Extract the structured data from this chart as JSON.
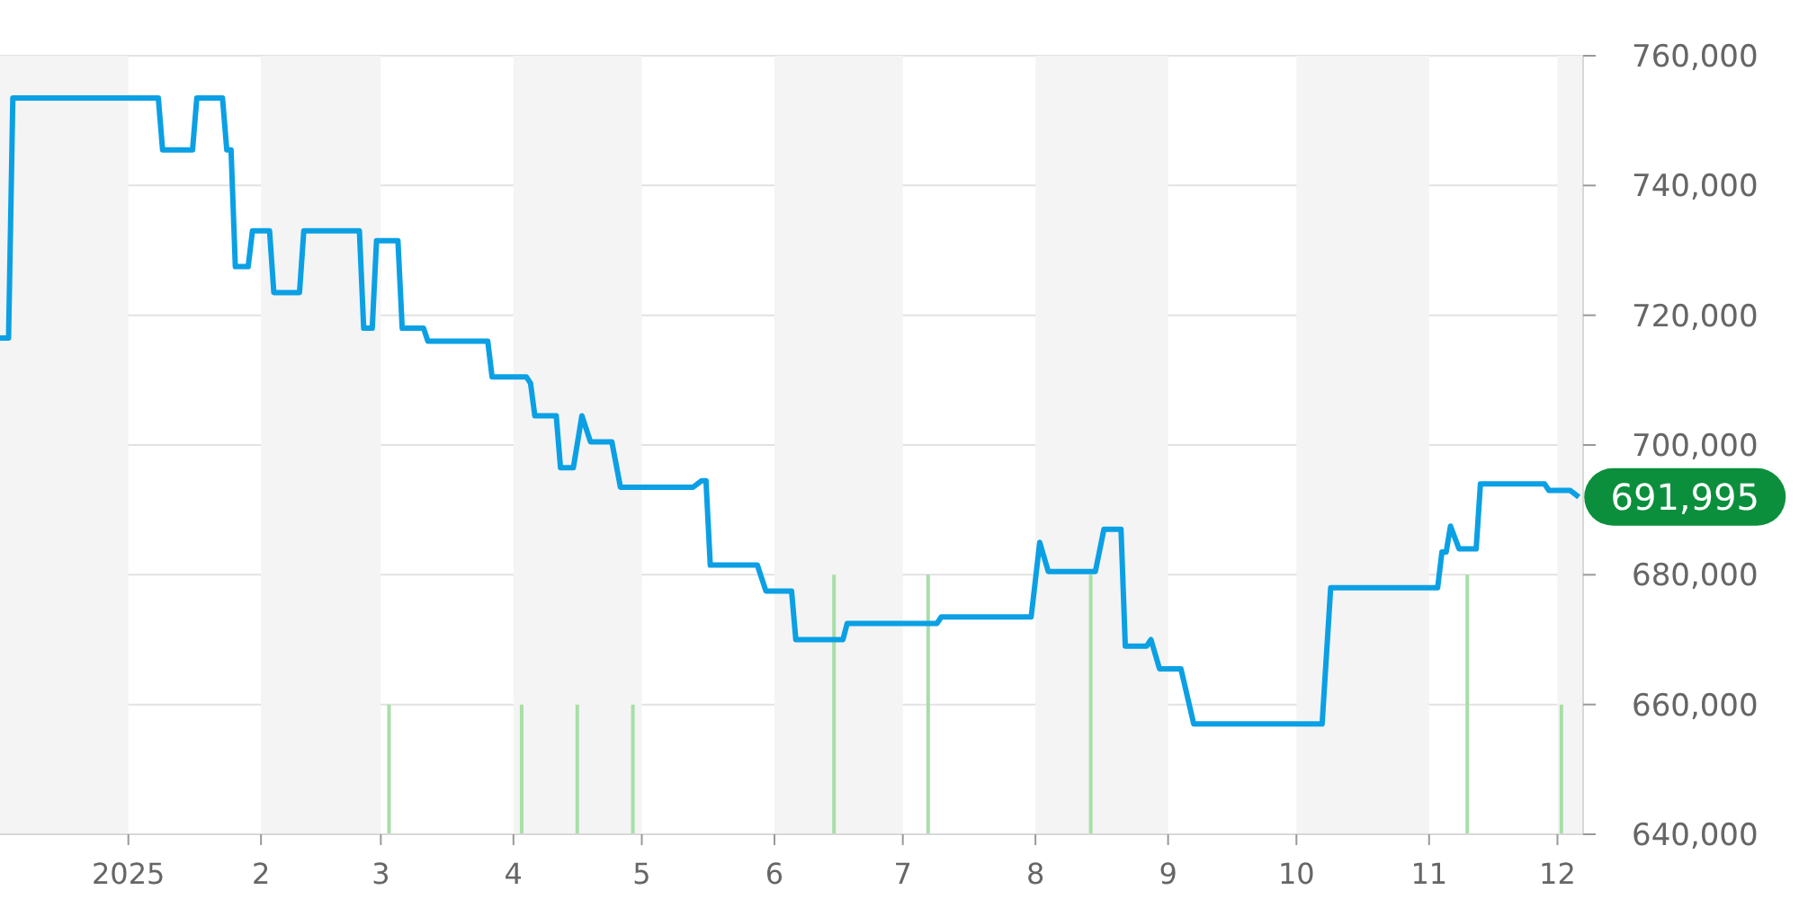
{
  "chart_data": {
    "type": "line",
    "series": [
      {
        "color": "#0ba0e4",
        "x": [
          "2024-12-02",
          "2024-12-04",
          "2024-12-05",
          "2025-01-08",
          "2025-01-09",
          "2025-01-16",
          "2025-01-17",
          "2025-01-23",
          "2025-01-24",
          "2025-01-25",
          "2025-01-26",
          "2025-01-29",
          "2025-01-30",
          "2025-02-03",
          "2025-02-04",
          "2025-02-10",
          "2025-02-11",
          "2025-02-24",
          "2025-02-25",
          "2025-02-27",
          "2025-02-28",
          "2025-03-05",
          "2025-03-06",
          "2025-03-11",
          "2025-03-12",
          "2025-03-26",
          "2025-03-27",
          "2025-04-04",
          "2025-04-05",
          "2025-04-06",
          "2025-04-11",
          "2025-04-12",
          "2025-04-15",
          "2025-04-17",
          "2025-04-19",
          "2025-04-24",
          "2025-04-26",
          "2025-05-13",
          "2025-05-15",
          "2025-05-16",
          "2025-05-17",
          "2025-05-28",
          "2025-05-30",
          "2025-06-05",
          "2025-06-06",
          "2025-06-17",
          "2025-06-18",
          "2025-07-09",
          "2025-07-10",
          "2025-07-31",
          "2025-08-02",
          "2025-08-04",
          "2025-08-15",
          "2025-08-17",
          "2025-08-21",
          "2025-08-22",
          "2025-08-27",
          "2025-08-28",
          "2025-08-30",
          "2025-09-04",
          "2025-09-07",
          "2025-10-07",
          "2025-10-09",
          "2025-11-03",
          "2025-11-04",
          "2025-11-05",
          "2025-11-06",
          "2025-11-08",
          "2025-11-12",
          "2025-11-13",
          "2025-11-28",
          "2025-11-29",
          "2025-12-04",
          "2025-12-06"
        ],
        "values": [
          716500,
          716500,
          753500,
          753500,
          745500,
          745500,
          753500,
          753500,
          745500,
          745500,
          727500,
          727500,
          733000,
          733000,
          723500,
          723500,
          733000,
          733000,
          718000,
          718000,
          731500,
          731500,
          718000,
          718000,
          716000,
          716000,
          710500,
          710500,
          709500,
          704500,
          704500,
          696500,
          696500,
          704500,
          700500,
          700500,
          693500,
          693500,
          694500,
          694500,
          681500,
          681500,
          677500,
          677500,
          670000,
          670000,
          672500,
          672500,
          673500,
          673500,
          685000,
          680500,
          680500,
          687000,
          687000,
          669000,
          669000,
          670000,
          665500,
          665500,
          657000,
          657000,
          678000,
          678000,
          683500,
          683500,
          687500,
          684000,
          684000,
          694000,
          694000,
          693000,
          693000,
          691995
        ],
        "value_labels": [
          null,
          null,
          null,
          null,
          null,
          null,
          null,
          null,
          null,
          null,
          null,
          null,
          null,
          null,
          null,
          null,
          null,
          null,
          null,
          null,
          null,
          null,
          null,
          null,
          null,
          null,
          null,
          null,
          null,
          null,
          null,
          null,
          null,
          null,
          null,
          null,
          null,
          null,
          null,
          null,
          null,
          null,
          null,
          null,
          null,
          null,
          null,
          null,
          null,
          null,
          null,
          null,
          null,
          null,
          null,
          null,
          null,
          null,
          null,
          null,
          null,
          null,
          null,
          null,
          null,
          null,
          null,
          null,
          null,
          null,
          null,
          null,
          null,
          "691,995"
        ]
      },
      {
        "type": "bar",
        "color": "#a8dea8",
        "x": [
          "2025-03-03",
          "2025-04-03",
          "2025-04-16",
          "2025-04-29",
          "2025-06-15",
          "2025-07-07",
          "2025-08-14",
          "2025-11-10",
          "2025-12-02"
        ],
        "values": [
          660000,
          660000,
          660000,
          660000,
          680000,
          680000,
          680000,
          680000,
          660000
        ]
      }
    ],
    "xlim": [
      "2024-12-02",
      "2025-12-07"
    ],
    "xticks": [
      {
        "value": "2025-01-01",
        "label": "2025"
      },
      {
        "value": "2025-02-01",
        "label": "2"
      },
      {
        "value": "2025-03-01",
        "label": "3"
      },
      {
        "value": "2025-04-01",
        "label": "4"
      },
      {
        "value": "2025-05-01",
        "label": "5"
      },
      {
        "value": "2025-06-01",
        "label": "6"
      },
      {
        "value": "2025-07-01",
        "label": "7"
      },
      {
        "value": "2025-08-01",
        "label": "8"
      },
      {
        "value": "2025-09-01",
        "label": "9"
      },
      {
        "value": "2025-10-01",
        "label": "10"
      },
      {
        "value": "2025-11-01",
        "label": "11"
      },
      {
        "value": "2025-12-01",
        "label": "12"
      }
    ],
    "ylim": [
      640000,
      760000
    ],
    "yticks": [
      {
        "value": 640000,
        "label": "640,000"
      },
      {
        "value": 660000,
        "label": "660,000"
      },
      {
        "value": 680000,
        "label": "680,000"
      },
      {
        "value": 700000,
        "label": "700,000"
      },
      {
        "value": 720000,
        "label": "720,000"
      },
      {
        "value": 740000,
        "label": "740,000"
      },
      {
        "value": 760000,
        "label": "760,000"
      }
    ],
    "grid": "y",
    "marker": "none",
    "bands": [
      {
        "axis": "x",
        "from": "2024-12-02",
        "to": "2025-01-01",
        "color": "#f4f4f4"
      },
      {
        "axis": "x",
        "from": "2025-02-01",
        "to": "2025-03-01",
        "color": "#f4f4f4"
      },
      {
        "axis": "x",
        "from": "2025-04-01",
        "to": "2025-05-01",
        "color": "#f4f4f4"
      },
      {
        "axis": "x",
        "from": "2025-06-01",
        "to": "2025-07-01",
        "color": "#f4f4f4"
      },
      {
        "axis": "x",
        "from": "2025-08-01",
        "to": "2025-09-01",
        "color": "#f4f4f4"
      },
      {
        "axis": "x",
        "from": "2025-10-01",
        "to": "2025-11-01",
        "color": "#f4f4f4"
      },
      {
        "axis": "x",
        "from": "2025-12-01",
        "to": "2025-12-07",
        "color": "#f4f4f4"
      }
    ]
  }
}
